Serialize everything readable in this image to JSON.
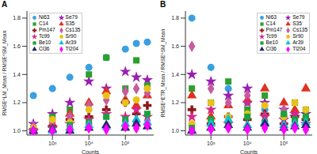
{
  "chart_data": [
    {
      "type": "scatter",
      "title": "A",
      "x_label": "Counts",
      "y_label": "RMSE^LM_Mean / RMSE^SM_Mean",
      "log": "x",
      "legend": "upper left",
      "grid": false,
      "x": [
        300,
        1000,
        3000,
        10000,
        30000,
        100000,
        200000,
        400000
      ],
      "xlim": [
        200,
        600000
      ],
      "xticks": [
        {
          "value": 1000,
          "label": "10³"
        },
        {
          "value": 10000,
          "label": "10⁴"
        },
        {
          "value": 100000,
          "label": "10⁵"
        }
      ],
      "ylim": [
        0.97,
        1.85
      ],
      "yticks": [
        {
          "value": 1,
          "label": "1.0"
        },
        1.2,
        1.4,
        1.6,
        1.8
      ],
      "series": [
        {
          "name": "Ni63",
          "color": "#3aa0e0",
          "marker": "circle",
          "values": [
            1.25,
            1.3,
            1.38,
            1.45,
            1.52,
            1.58,
            1.62,
            1.63
          ]
        },
        {
          "name": "Se79",
          "color": "#9a1fb0",
          "marker": "star",
          "values": [
            1.05,
            1.12,
            1.2,
            1.35,
            1.3,
            1.42,
            1.38,
            1.36
          ]
        },
        {
          "name": "C14",
          "color": "#2ca02c",
          "marker": "square",
          "values": [
            1.02,
            1.1,
            1.15,
            1.4,
            1.52,
            1.3,
            1.5,
            1.32
          ]
        },
        {
          "name": "S35",
          "color": "#e0301e",
          "marker": "triangle",
          "values": [
            1.0,
            1.05,
            1.12,
            1.2,
            1.28,
            1.22,
            1.18,
            1.25
          ]
        },
        {
          "name": "Pm147",
          "color": "#8b1a1a",
          "marker": "cross",
          "values": [
            1.01,
            1.03,
            1.08,
            1.1,
            1.15,
            1.2,
            1.12,
            1.18
          ]
        },
        {
          "name": "Cs135",
          "color": "#c65b9e",
          "marker": "diamond",
          "values": [
            1.03,
            1.06,
            1.1,
            1.18,
            1.22,
            1.28,
            1.3,
            1.27
          ]
        },
        {
          "name": "Tc99",
          "color": "#d6278a",
          "marker": "star",
          "values": [
            1.0,
            1.02,
            1.05,
            1.08,
            1.12,
            1.1,
            1.15,
            1.1
          ]
        },
        {
          "name": "Sr90",
          "color": "#e8c21a",
          "marker": "circle",
          "values": [
            1.02,
            1.08,
            1.06,
            1.15,
            1.25,
            1.2,
            1.22,
            1.3
          ]
        },
        {
          "name": "Be10",
          "color": "#1aa33c",
          "marker": "square",
          "values": [
            1.0,
            1.01,
            1.04,
            1.06,
            1.1,
            1.08,
            1.06,
            1.12
          ]
        },
        {
          "name": "Ar39",
          "color": "#17becf",
          "marker": "triangle",
          "values": [
            1.0,
            1.0,
            1.02,
            1.04,
            1.03,
            1.05,
            1.08,
            1.06
          ]
        },
        {
          "name": "Cl36",
          "color": "#1f2a6b",
          "marker": "triangle",
          "values": [
            1.0,
            1.01,
            1.0,
            1.02,
            1.04,
            1.02,
            1.05,
            1.03
          ]
        },
        {
          "name": "Tl204",
          "color": "#ff00ff",
          "marker": "diamond",
          "values": [
            1.0,
            1.0,
            1.01,
            1.02,
            1.01,
            1.03,
            1.02,
            1.04
          ]
        }
      ]
    },
    {
      "type": "scatter",
      "title": "B",
      "x_label": "Counts",
      "y_label": "RMSE^ETR_Mean / RMSE^SM_Mean",
      "log": "x",
      "legend": "upper right",
      "grid": false,
      "x": [
        300,
        1000,
        3000,
        10000,
        30000,
        100000,
        200000,
        400000
      ],
      "xlim": [
        200,
        600000
      ],
      "xticks": [
        {
          "value": 1000,
          "label": "10³"
        },
        {
          "value": 10000,
          "label": "10⁴"
        },
        {
          "value": 100000,
          "label": "10⁵"
        }
      ],
      "ylim": [
        0.97,
        1.85
      ],
      "yticks": [
        {
          "value": 1,
          "label": "1.0"
        },
        1.2,
        1.4,
        1.6,
        1.8
      ],
      "series": [
        {
          "name": "Ni63",
          "color": "#3aa0e0",
          "marker": "circle",
          "values": [
            1.8,
            1.45,
            1.3,
            1.2,
            1.15,
            1.1,
            1.12,
            1.08
          ]
        },
        {
          "name": "Se79",
          "color": "#9a1fb0",
          "marker": "star",
          "values": [
            1.4,
            1.35,
            1.25,
            1.3,
            1.2,
            1.15,
            1.1,
            1.12
          ]
        },
        {
          "name": "C14",
          "color": "#2ca02c",
          "marker": "square",
          "values": [
            1.3,
            1.2,
            1.35,
            1.15,
            1.25,
            1.1,
            1.2,
            1.15
          ]
        },
        {
          "name": "S35",
          "color": "#e0301e",
          "marker": "triangle",
          "values": [
            1.25,
            1.1,
            1.18,
            1.22,
            1.3,
            1.2,
            1.15,
            1.3
          ]
        },
        {
          "name": "Pm147",
          "color": "#8b1a1a",
          "marker": "cross",
          "values": [
            1.15,
            1.05,
            1.1,
            1.08,
            1.12,
            1.05,
            1.1,
            1.08
          ]
        },
        {
          "name": "Cs135",
          "color": "#c65b9e",
          "marker": "diamond",
          "values": [
            1.6,
            1.3,
            1.2,
            1.25,
            1.1,
            1.15,
            1.05,
            1.1
          ]
        },
        {
          "name": "Tc99",
          "color": "#d6278a",
          "marker": "star",
          "values": [
            1.1,
            1.15,
            1.05,
            1.2,
            1.1,
            1.08,
            1.12,
            1.05
          ]
        },
        {
          "name": "Sr90",
          "color": "#e8c21a",
          "marker": "circle",
          "values": [
            1.05,
            1.2,
            1.1,
            1.12,
            1.18,
            1.1,
            1.2,
            1.15
          ]
        },
        {
          "name": "Be10",
          "color": "#1aa33c",
          "marker": "square",
          "values": [
            1.02,
            1.08,
            1.05,
            1.1,
            1.06,
            1.12,
            1.08,
            1.1
          ]
        },
        {
          "name": "Ar39",
          "color": "#17becf",
          "marker": "triangle",
          "values": [
            1.0,
            1.05,
            1.08,
            1.04,
            1.06,
            1.04,
            1.05,
            1.06
          ]
        },
        {
          "name": "Cl36",
          "color": "#1f2a6b",
          "marker": "triangle",
          "values": [
            1.0,
            1.02,
            1.04,
            1.02,
            1.05,
            1.02,
            1.03,
            1.04
          ]
        },
        {
          "name": "Tl204",
          "color": "#ff00ff",
          "marker": "diamond",
          "values": [
            1.0,
            1.01,
            1.02,
            1.01,
            1.02,
            1.01,
            1.02,
            1.01
          ]
        }
      ]
    }
  ]
}
